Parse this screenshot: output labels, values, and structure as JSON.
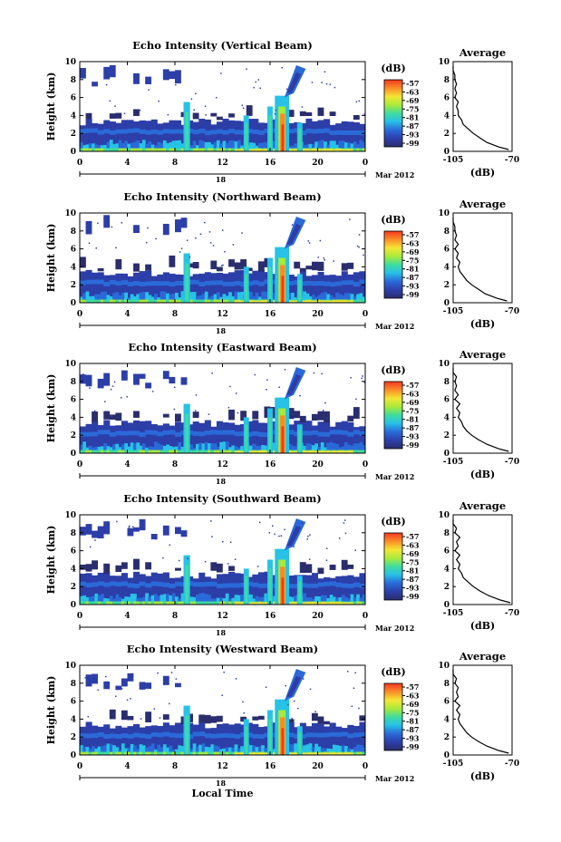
{
  "chart_data": {
    "type": "heatmap",
    "shared": {
      "ylabel": "Height (km)",
      "y_ticks": [
        "0",
        "2",
        "4",
        "6",
        "8",
        "10"
      ],
      "ylim": [
        0,
        10
      ],
      "x_ticks": [
        "0",
        "4",
        "8",
        "12",
        "16",
        "20",
        "0"
      ],
      "xlim": [
        0,
        24
      ],
      "date_day": "18",
      "date_month_year": "Mar 2012",
      "xlabel": "Local Time",
      "colorbar_unit": "(dB)",
      "colorbar_ticks": [
        "-57",
        "-63",
        "-69",
        "-75",
        "-81",
        "-87",
        "-93",
        "-99"
      ],
      "colors": [
        "#f5381e",
        "#fa8a28",
        "#f4e634",
        "#a6ea3c",
        "#3fdc9e",
        "#27c2e6",
        "#2a6ad8",
        "#2c3ea8",
        "#2a2e6e"
      ],
      "average_title": "Average",
      "average_x_ticks": [
        "-105",
        "-70"
      ],
      "average_xlim": [
        -105,
        -70
      ],
      "average_y_ticks": [
        "0",
        "2",
        "4",
        "6",
        "8",
        "10"
      ],
      "average_xlabel": "(dB)",
      "average_heights": [
        0.2,
        0.5,
        1.0,
        1.5,
        2.0,
        2.5,
        3.0,
        3.5,
        4.0,
        4.5,
        5.0,
        5.5,
        6.0,
        6.5,
        7.0,
        7.5,
        8.0,
        8.5,
        9.0,
        9.5
      ]
    },
    "panels": [
      {
        "title": "Echo Intensity (Vertical Beam)",
        "average_db": [
          -72,
          -78,
          -85,
          -89,
          -93,
          -96,
          -99,
          -100,
          -102,
          -102,
          -103,
          -102,
          -104,
          -103,
          -104,
          -103,
          -104,
          -104,
          -105,
          -105
        ]
      },
      {
        "title": "Echo Intensity (Northward Beam)",
        "average_db": [
          -73,
          -79,
          -86,
          -90,
          -94,
          -97,
          -99,
          -101,
          -102,
          -101,
          -103,
          -102,
          -104,
          -102,
          -104,
          -103,
          -104,
          -104,
          -105,
          -105
        ]
      },
      {
        "title": "Echo Intensity (Eastward Beam)",
        "average_db": [
          -72,
          -78,
          -85,
          -90,
          -94,
          -97,
          -99,
          -100,
          -102,
          -101,
          -103,
          -101,
          -104,
          -102,
          -104,
          -103,
          -104,
          -103,
          -105,
          -105
        ]
      },
      {
        "title": "Echo Intensity (Southward Beam)",
        "average_db": [
          -71,
          -77,
          -84,
          -89,
          -93,
          -96,
          -99,
          -100,
          -102,
          -101,
          -103,
          -101,
          -104,
          -102,
          -103,
          -101,
          -104,
          -103,
          -105,
          -105
        ]
      },
      {
        "title": "Echo Intensity (Westward Beam)",
        "average_db": [
          -72,
          -78,
          -85,
          -90,
          -94,
          -97,
          -99,
          -101,
          -102,
          -101,
          -103,
          -101,
          -104,
          -102,
          -103,
          -102,
          -104,
          -103,
          -105,
          -105
        ]
      }
    ]
  }
}
